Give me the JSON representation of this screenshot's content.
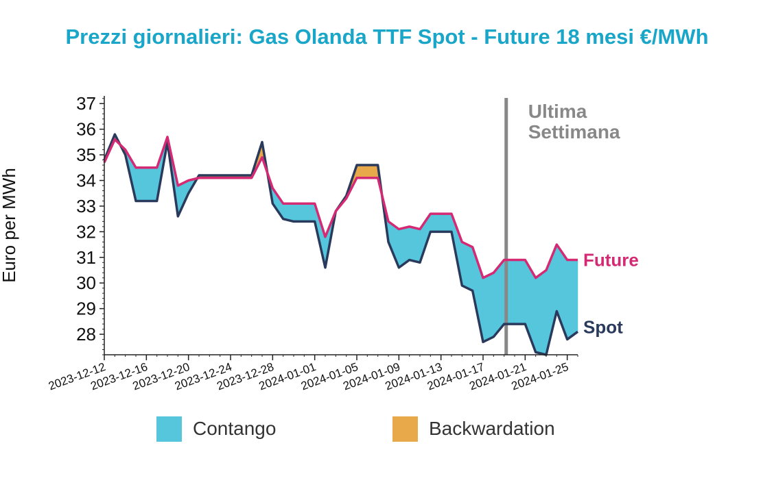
{
  "title": "Prezzi giornalieri: Gas Olanda TTF Spot - Future 18 mesi €/MWh",
  "colors": {
    "title": "#1aa6c8",
    "contango": "#55c6dc",
    "backwardation": "#e8a94a",
    "spot": "#2a3a5c",
    "future": "#d42a73",
    "marker": "#888888"
  },
  "legend": {
    "contango": "Contango",
    "backwardation": "Backwardation"
  },
  "chart_data": {
    "type": "area",
    "ylabel": "Euro per MWh",
    "xlabel": "",
    "ylim": [
      27.2,
      37.3
    ],
    "xlim": [
      "2023-12-12",
      "2024-01-26"
    ],
    "yticks": [
      28,
      29,
      30,
      31,
      32,
      33,
      34,
      35,
      36,
      37
    ],
    "xticks": [
      "2023-12-12",
      "2023-12-16",
      "2023-12-20",
      "2023-12-24",
      "2023-12-28",
      "2024-01-01",
      "2024-01-05",
      "2024-01-09",
      "2024-01-13",
      "2024-01-17",
      "2024-01-21",
      "2024-01-25"
    ],
    "grid": false,
    "series": [
      {
        "name": "Spot",
        "x": [
          "2023-12-12",
          "2023-12-13",
          "2023-12-14",
          "2023-12-15",
          "2023-12-16",
          "2023-12-17",
          "2023-12-18",
          "2023-12-19",
          "2023-12-20",
          "2023-12-21",
          "2023-12-22",
          "2023-12-23",
          "2023-12-24",
          "2023-12-25",
          "2023-12-26",
          "2023-12-27",
          "2023-12-28",
          "2023-12-29",
          "2023-12-30",
          "2023-12-31",
          "2024-01-01",
          "2024-01-02",
          "2024-01-03",
          "2024-01-04",
          "2024-01-05",
          "2024-01-06",
          "2024-01-07",
          "2024-01-08",
          "2024-01-09",
          "2024-01-10",
          "2024-01-11",
          "2024-01-12",
          "2024-01-13",
          "2024-01-14",
          "2024-01-15",
          "2024-01-16",
          "2024-01-17",
          "2024-01-18",
          "2024-01-19",
          "2024-01-20",
          "2024-01-21",
          "2024-01-22",
          "2024-01-23",
          "2024-01-24",
          "2024-01-25",
          "2024-01-26"
        ],
        "y": [
          34.8,
          35.8,
          35.0,
          33.2,
          33.2,
          33.2,
          35.5,
          32.6,
          33.5,
          34.2,
          34.2,
          34.2,
          34.2,
          34.2,
          34.2,
          35.5,
          33.1,
          32.5,
          32.4,
          32.4,
          32.4,
          30.6,
          32.8,
          33.4,
          34.6,
          34.6,
          34.6,
          31.6,
          30.6,
          30.9,
          30.8,
          32.0,
          32.0,
          32.0,
          29.9,
          29.7,
          27.7,
          27.9,
          28.4,
          28.4,
          28.4,
          27.3,
          27.2,
          28.9,
          27.8,
          28.1
        ]
      },
      {
        "name": "Future",
        "x": [
          "2023-12-12",
          "2023-12-13",
          "2023-12-14",
          "2023-12-15",
          "2023-12-16",
          "2023-12-17",
          "2023-12-18",
          "2023-12-19",
          "2023-12-20",
          "2023-12-21",
          "2023-12-22",
          "2023-12-23",
          "2023-12-24",
          "2023-12-25",
          "2023-12-26",
          "2023-12-27",
          "2023-12-28",
          "2023-12-29",
          "2023-12-30",
          "2023-12-31",
          "2024-01-01",
          "2024-01-02",
          "2024-01-03",
          "2024-01-04",
          "2024-01-05",
          "2024-01-06",
          "2024-01-07",
          "2024-01-08",
          "2024-01-09",
          "2024-01-10",
          "2024-01-11",
          "2024-01-12",
          "2024-01-13",
          "2024-01-14",
          "2024-01-15",
          "2024-01-16",
          "2024-01-17",
          "2024-01-18",
          "2024-01-19",
          "2024-01-20",
          "2024-01-21",
          "2024-01-22",
          "2024-01-23",
          "2024-01-24",
          "2024-01-25",
          "2024-01-26"
        ],
        "y": [
          34.7,
          35.6,
          35.2,
          34.5,
          34.5,
          34.5,
          35.7,
          33.8,
          34.0,
          34.1,
          34.1,
          34.1,
          34.1,
          34.1,
          34.1,
          34.9,
          33.7,
          33.1,
          33.1,
          33.1,
          33.1,
          31.8,
          32.8,
          33.3,
          34.1,
          34.1,
          34.1,
          32.4,
          32.1,
          32.2,
          32.1,
          32.7,
          32.7,
          32.7,
          31.6,
          31.4,
          30.2,
          30.4,
          30.9,
          30.9,
          30.9,
          30.2,
          30.5,
          31.5,
          30.9,
          30.9
        ]
      }
    ],
    "annotations": [
      {
        "text": "Ultima Settimana",
        "lines": [
          "Ultima",
          "Settimana"
        ],
        "x": "2024-01-19"
      }
    ],
    "end_labels": {
      "future": "Future",
      "spot": "Spot"
    }
  }
}
